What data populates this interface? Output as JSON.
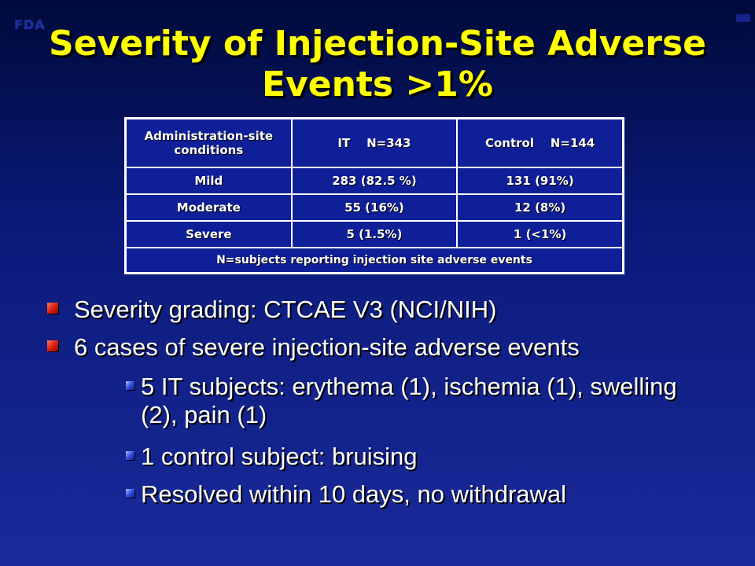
{
  "logo": {
    "text": "FDA"
  },
  "title": {
    "line1": "Severity of Injection-Site Adverse",
    "line2": "Events >1%"
  },
  "table": {
    "headers": [
      "Administration-site conditions",
      "IT    N=343",
      "Control    N=144"
    ],
    "rows": [
      [
        "Mild",
        "283 (82.5 %)",
        "131 (91%)"
      ],
      [
        "Moderate",
        "55 (16%)",
        "12 (8%)"
      ],
      [
        "Severe",
        "5 (1.5%)",
        "1 (<1%)"
      ]
    ],
    "footnote": "N=subjects reporting injection site adverse events"
  },
  "bullets": [
    "Severity grading: CTCAE V3 (NCI/NIH)",
    "6 cases of severe injection-site adverse events"
  ],
  "sub_bullets": [
    "5 IT subjects: erythema (1), ischemia (1), swelling (2), pain (1)",
    "1 control subject: bruising",
    "Resolved within 10 days, no withdrawal"
  ]
}
